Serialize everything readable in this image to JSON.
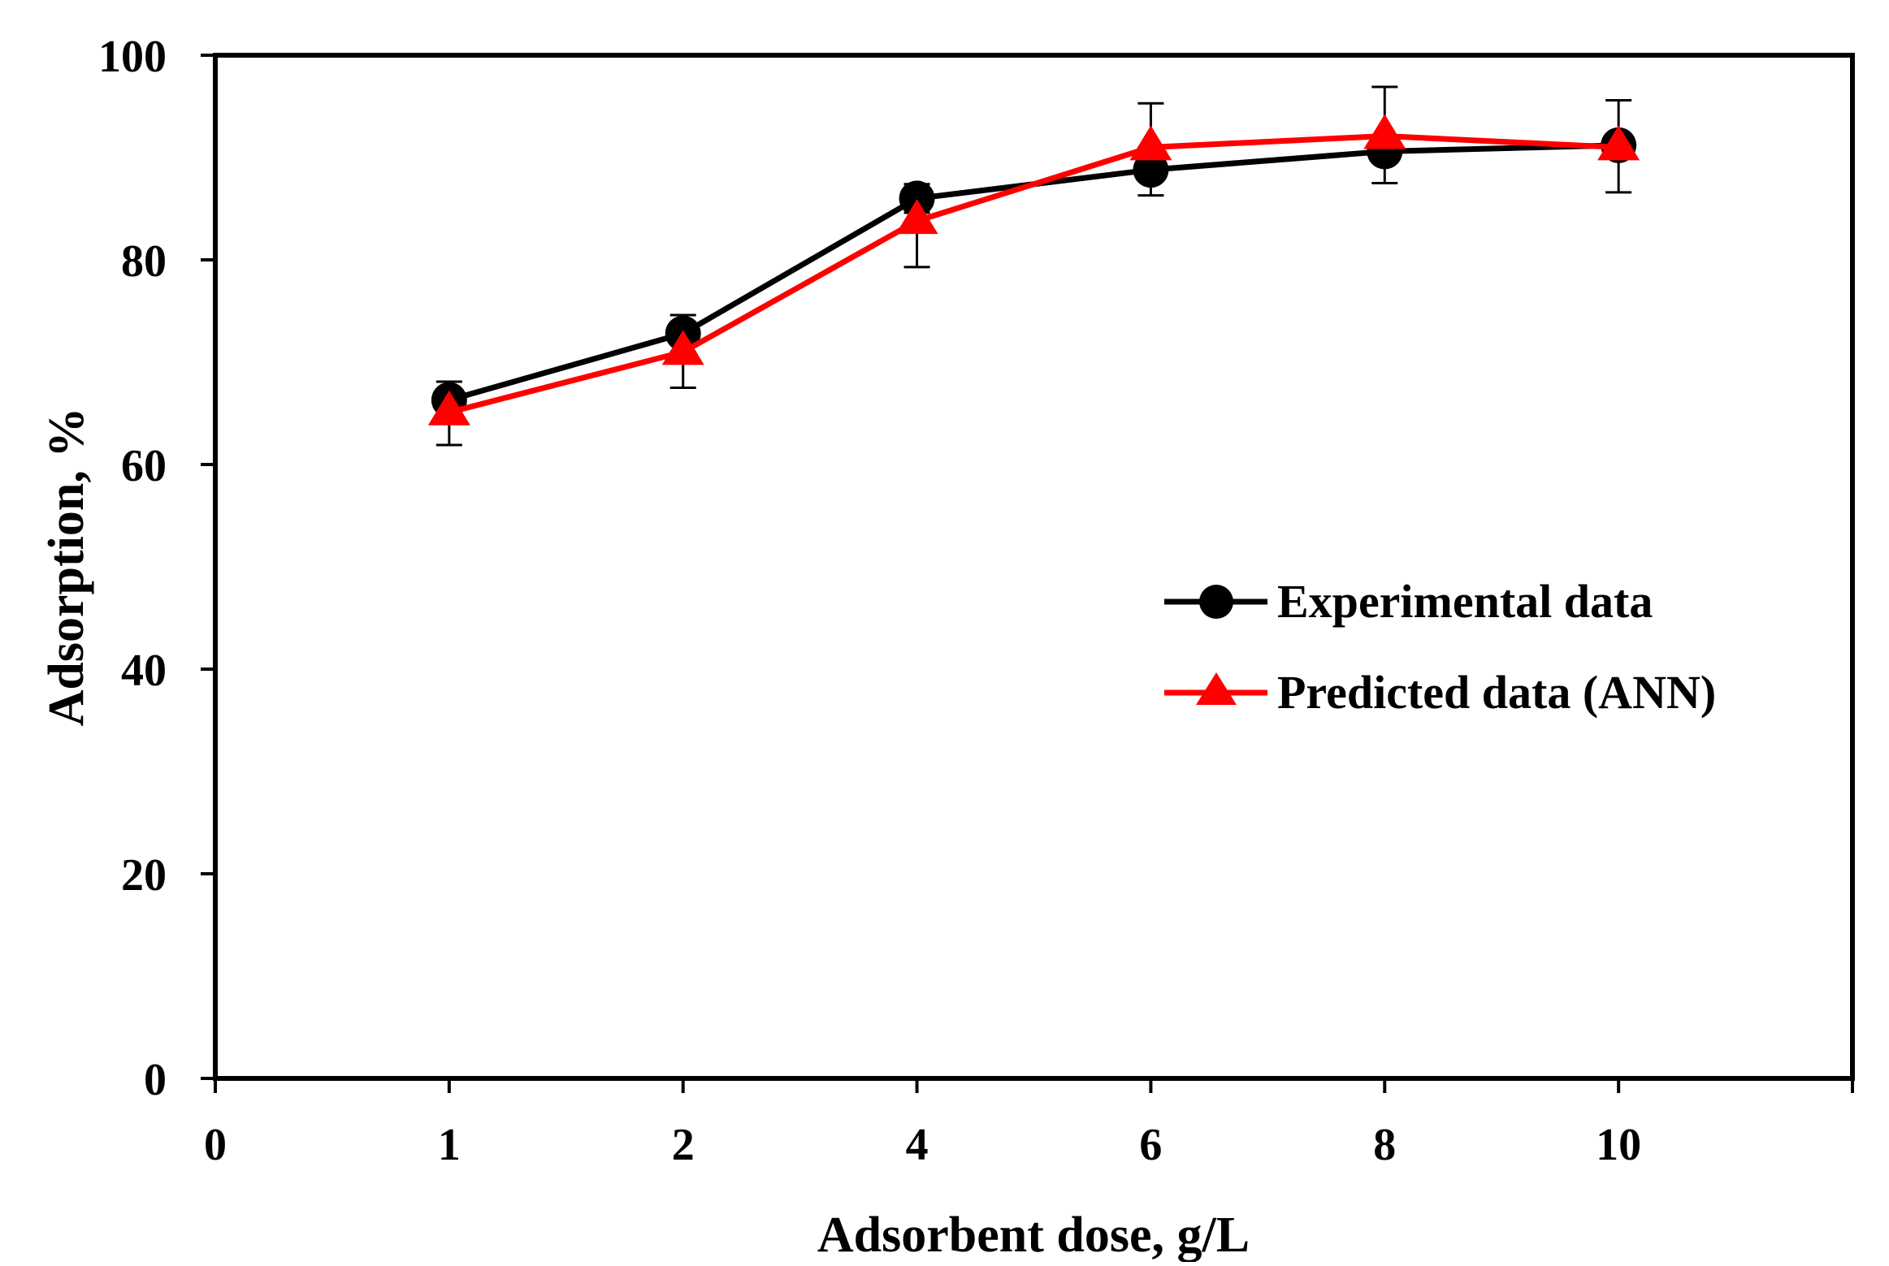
{
  "chart_data": {
    "type": "line",
    "title": "",
    "xlabel": "Adsorbent dose, g/L",
    "ylabel": "Adsorption, %",
    "x_tick_labels": [
      "0",
      "1",
      "2",
      "4",
      "6",
      "8",
      "10"
    ],
    "y_ticks": [
      0,
      20,
      40,
      60,
      80,
      100
    ],
    "y_tick_labels": [
      "0",
      "20",
      "40",
      "60",
      "80",
      "100"
    ],
    "ylim": [
      0,
      100
    ],
    "categories": [
      "1",
      "2",
      "4",
      "6",
      "8",
      "10"
    ],
    "legend_position": "center-right",
    "grid": false,
    "series": [
      {
        "name": "Experimental data",
        "color": "#000000",
        "marker": "circle",
        "values": [
          66.3,
          72.8,
          86.0,
          88.8,
          90.6,
          91.2
        ],
        "error_upper": [
          1.8,
          1.8,
          1.4,
          6.5,
          6.3,
          4.4
        ],
        "error_lower": [
          1.8,
          1.8,
          1.4,
          2.5,
          3.1,
          4.6
        ]
      },
      {
        "name": "Predicted data (ANN)",
        "color": "#ff0000",
        "marker": "triangle",
        "values": [
          65.1,
          71.0,
          83.8,
          91.0,
          92.1,
          91.0
        ],
        "error_upper": [
          0,
          0,
          0,
          0,
          0,
          0
        ],
        "error_lower": [
          3.2,
          3.5,
          4.5,
          0,
          0,
          0
        ]
      }
    ]
  }
}
